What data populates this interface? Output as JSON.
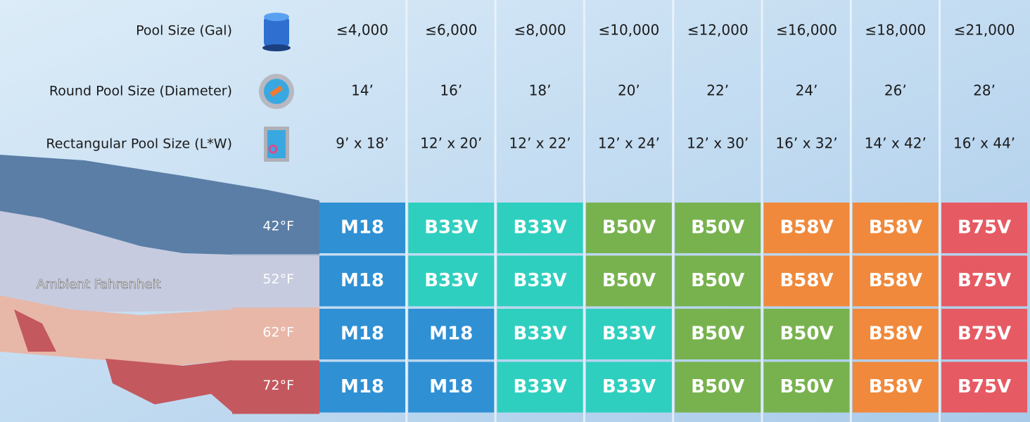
{
  "header": {
    "rows": [
      {
        "label": "Pool Size (Gal)",
        "values": [
          "≤4,000",
          "≤6,000",
          "≤8,000",
          "≤10,000",
          "≤12,000",
          "≤16,000",
          "≤18,000",
          "≤21,000"
        ]
      },
      {
        "label": "Round Pool Size (Diameter)",
        "values": [
          "14’",
          "16’",
          "18’",
          "20’",
          "22’",
          "24’",
          "26’",
          "28’"
        ]
      },
      {
        "label": "Rectangular Pool Size (L*W)",
        "values": [
          "9’ x 18’",
          "12’ x 20’",
          "12’ x 22’",
          "12’ x 24’",
          "12’ x 30’",
          "16’ x 32’",
          "14’ x 42’",
          "16’ x 44’"
        ]
      }
    ]
  },
  "map_label": "Ambient Fahrenheit",
  "table": {
    "rows": [
      {
        "temp": "42°F",
        "cells": [
          "M18",
          "B33V",
          "B33V",
          "B50V",
          "B50V",
          "B58V",
          "B58V",
          "B75V"
        ]
      },
      {
        "temp": "52°F",
        "cells": [
          "M18",
          "B33V",
          "B33V",
          "B50V",
          "B50V",
          "B58V",
          "B58V",
          "B75V"
        ]
      },
      {
        "temp": "62°F",
        "cells": [
          "M18",
          "M18",
          "B33V",
          "B33V",
          "B50V",
          "B50V",
          "B58V",
          "B75V"
        ]
      },
      {
        "temp": "72°F",
        "cells": [
          "M18",
          "M18",
          "B33V",
          "B33V",
          "B50V",
          "B50V",
          "B58V",
          "B75V"
        ]
      }
    ]
  },
  "colors": {
    "M18": "#2f90d4",
    "B33V": "#2fcfbf",
    "B50V": "#78b24f",
    "B58V": "#f0893b",
    "B75V": "#e65a63"
  },
  "temp_colors": [
    "#5a7ea6",
    "#c7cbdf",
    "#e7b7a8",
    "#c4585f"
  ]
}
